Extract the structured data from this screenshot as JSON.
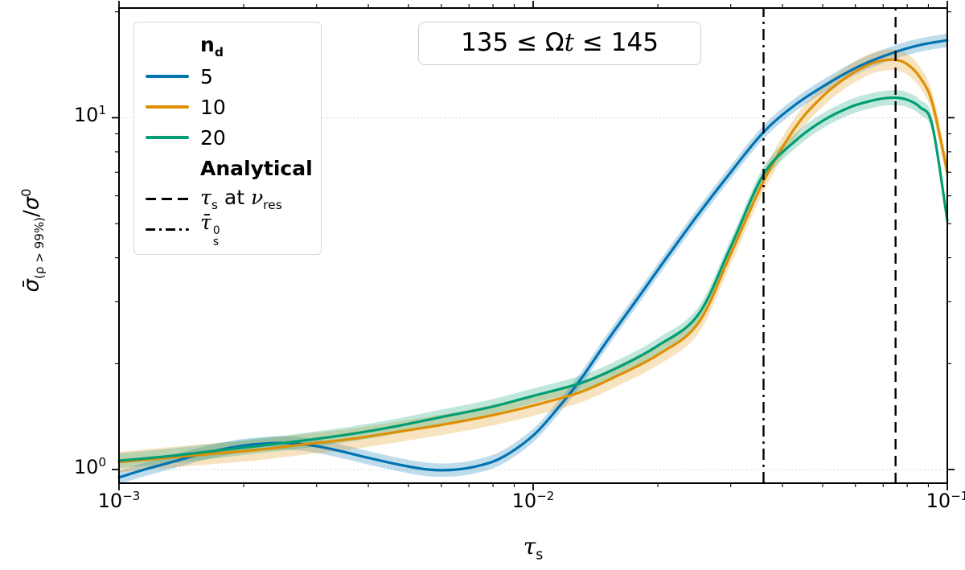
{
  "annotation": {
    "prefix": "135 ≤ Ω",
    "italic_t": "t",
    "suffix": " ≤ 145"
  },
  "axes": {
    "xlabel": {
      "tau": "τ",
      "sub": "s"
    },
    "ylabel": {
      "sigma_bar": "σ̄",
      "sub": "(ρ > 99%)",
      "slash": "/",
      "sigma": "σ",
      "sup": "0"
    },
    "x_ticks": [
      {
        "base": "10",
        "exp": "−3"
      },
      {
        "base": "10",
        "exp": "−2"
      },
      {
        "base": "10",
        "exp": "−1"
      }
    ],
    "y_ticks": [
      {
        "base": "10",
        "exp": "0"
      },
      {
        "base": "10",
        "exp": "1"
      }
    ]
  },
  "legend": {
    "header": {
      "main": "n",
      "sub": "d"
    },
    "analytical_header": "Analytical",
    "dashed_entry": {
      "tau": "τ",
      "tausub": "s",
      "mid": " at ",
      "nu": "ν",
      "nusub": "res"
    },
    "dashdot_entry": {
      "tau": "τ̄",
      "sub": "s",
      "sup": "0"
    }
  },
  "chart_data": {
    "type": "line",
    "title": "135 ≤ Ωt ≤ 145",
    "xlabel": "tau_s",
    "ylabel": "sigma_bar_(rho>99%)/sigma^0",
    "xscale": "log",
    "yscale": "log",
    "xlim": [
      0.001,
      0.1
    ],
    "ylim": [
      0.915,
      20.5
    ],
    "grid": "dotted horizontal lines at y=1 and y=10",
    "legend_position": "upper left",
    "series": [
      {
        "name": "5",
        "color": "#0173b2",
        "band_frac": 0.045,
        "x": [
          0.001,
          0.00115,
          0.0013,
          0.0015,
          0.0017,
          0.002,
          0.0024,
          0.0028,
          0.0033,
          0.004,
          0.0048,
          0.0056,
          0.0065,
          0.0075,
          0.0085,
          0.01,
          0.0115,
          0.013,
          0.015,
          0.018,
          0.021,
          0.025,
          0.03,
          0.036,
          0.043,
          0.052,
          0.062,
          0.074,
          0.086,
          0.1
        ],
        "y": [
          0.95,
          1.0,
          1.04,
          1.09,
          1.13,
          1.17,
          1.19,
          1.18,
          1.14,
          1.08,
          1.03,
          1.0,
          1.0,
          1.03,
          1.09,
          1.25,
          1.5,
          1.8,
          2.3,
          3.1,
          4.0,
          5.3,
          7.0,
          9.1,
          10.9,
          12.6,
          14.1,
          15.3,
          16.1,
          16.6
        ]
      },
      {
        "name": "10",
        "color": "#de8f05",
        "band_frac": 0.07,
        "x": [
          0.001,
          0.0013,
          0.0017,
          0.0022,
          0.0028,
          0.0036,
          0.0047,
          0.006,
          0.0078,
          0.01,
          0.013,
          0.016,
          0.02,
          0.025,
          0.03,
          0.036,
          0.043,
          0.05,
          0.058,
          0.065,
          0.07,
          0.075,
          0.08,
          0.086,
          0.092,
          0.1
        ],
        "y": [
          1.05,
          1.08,
          1.11,
          1.14,
          1.18,
          1.22,
          1.28,
          1.34,
          1.42,
          1.52,
          1.66,
          1.85,
          2.12,
          2.6,
          4.1,
          6.6,
          9.4,
          11.5,
          13.2,
          14.2,
          14.55,
          14.6,
          14.2,
          13.0,
          11.0,
          7.0
        ]
      },
      {
        "name": "20",
        "color": "#029e73",
        "band_frac": 0.05,
        "x": [
          0.001,
          0.0013,
          0.0017,
          0.0022,
          0.0028,
          0.0036,
          0.0047,
          0.006,
          0.0078,
          0.01,
          0.013,
          0.016,
          0.02,
          0.025,
          0.03,
          0.036,
          0.043,
          0.05,
          0.058,
          0.065,
          0.07,
          0.075,
          0.08,
          0.086,
          0.092,
          0.1
        ],
        "y": [
          1.06,
          1.09,
          1.13,
          1.17,
          1.21,
          1.26,
          1.33,
          1.41,
          1.5,
          1.62,
          1.76,
          1.95,
          2.25,
          2.75,
          4.3,
          6.9,
          8.6,
          9.8,
          10.7,
          11.15,
          11.35,
          11.4,
          11.25,
          10.7,
          9.5,
          5.1
        ]
      }
    ],
    "vlines": [
      {
        "x": 0.036,
        "style": "dashdot",
        "color": "#000000",
        "label": "tau_bar_s^0"
      },
      {
        "x": 0.075,
        "style": "dashed",
        "color": "#000000",
        "label": "tau_s at nu_res"
      }
    ],
    "gridlines_y": [
      1,
      10
    ]
  }
}
